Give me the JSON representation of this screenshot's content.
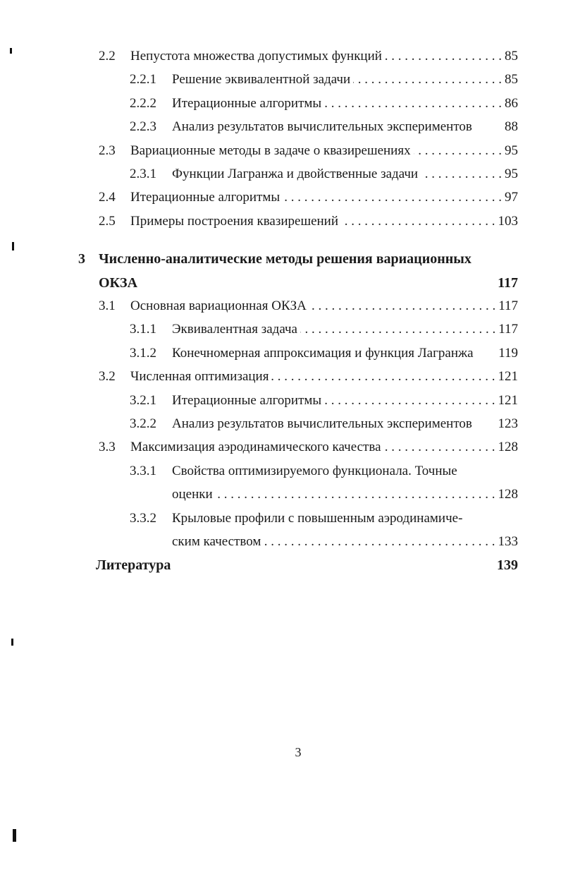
{
  "toc": [
    {
      "level": 2,
      "num": "2.2",
      "title": "Непустота множества допустимых функций",
      "page": "85",
      "leader": true
    },
    {
      "level": 3,
      "num": "2.2.1",
      "title": "Решение эквивалентной задачи",
      "page": "85",
      "leader": true
    },
    {
      "level": 3,
      "num": "2.2.2",
      "title": "Итерационные алгоритмы",
      "page": "86",
      "leader": true
    },
    {
      "level": 3,
      "num": "2.2.3",
      "title": "Анализ результатов вычислительных экспериментов",
      "page": "88",
      "leader": false
    },
    {
      "level": 2,
      "num": "2.3",
      "title": "Вариационные методы в задаче о квазирешениях",
      "page": "95",
      "leader": true
    },
    {
      "level": 3,
      "num": "2.3.1",
      "title": "Функции Лагранжа и двойственные задачи",
      "page": "95",
      "leader": true
    },
    {
      "level": 2,
      "num": "2.4",
      "title": "Итерационные алгоритмы",
      "page": "97",
      "leader": true
    },
    {
      "level": 2,
      "num": "2.5",
      "title": "Примеры построения квазирешений",
      "page": "103",
      "leader": true
    },
    {
      "level": 1,
      "num": "3",
      "title": "Численно-аналитические методы решения вариационных",
      "page": "",
      "leader": false,
      "gap": true
    },
    {
      "level": "1c",
      "num": "",
      "title": "ОКЗА",
      "page": "117",
      "leader": false
    },
    {
      "level": 2,
      "num": "3.1",
      "title": "Основная вариационная ОКЗА",
      "page": "117",
      "leader": true
    },
    {
      "level": 3,
      "num": "3.1.1",
      "title": "Эквивалентная задача",
      "page": "117",
      "leader": true
    },
    {
      "level": 3,
      "num": "3.1.2",
      "title": "Конечномерная аппроксимация и функция Лагранжа",
      "page": "119",
      "leader": false
    },
    {
      "level": 2,
      "num": "3.2",
      "title": "Численная оптимизация",
      "page": "121",
      "leader": true
    },
    {
      "level": 3,
      "num": "3.2.1",
      "title": "Итерационные алгоритмы",
      "page": "121",
      "leader": true
    },
    {
      "level": 3,
      "num": "3.2.2",
      "title": "Анализ результатов вычислительных экспериментов",
      "page": "123",
      "leader": false
    },
    {
      "level": 2,
      "num": "3.3",
      "title": "Максимизация аэродинамического качества",
      "page": "128",
      "leader": true
    },
    {
      "level": 3,
      "num": "3.3.1",
      "title": "Свойства оптимизируемого функционала. Точные",
      "page": "",
      "leader": false
    },
    {
      "level": "3c",
      "num": "",
      "title": "оценки",
      "page": "128",
      "leader": true
    },
    {
      "level": 3,
      "num": "3.3.2",
      "title": "Крыловые профили с повышенным аэродинамиче-",
      "page": "",
      "leader": false
    },
    {
      "level": "3c",
      "num": "",
      "title": "ским качеством",
      "page": "133",
      "leader": true
    },
    {
      "level": "1b",
      "num": "",
      "title": "Литература",
      "page": "139",
      "leader": false
    }
  ],
  "page_number": "3"
}
